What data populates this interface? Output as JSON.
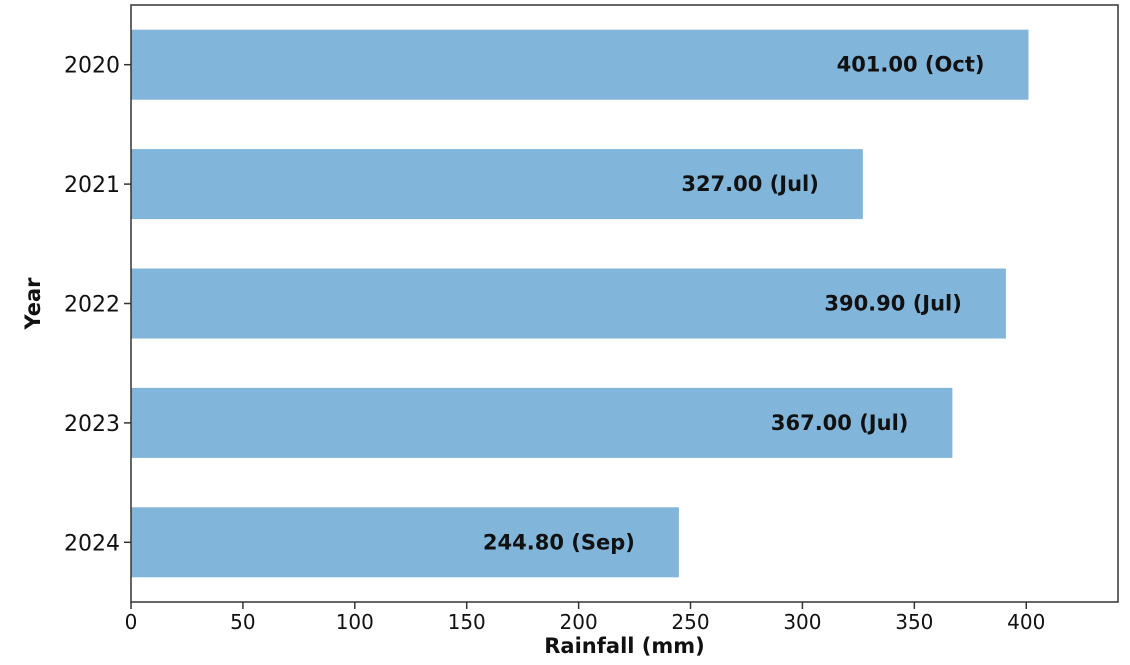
{
  "chart_data": {
    "type": "bar",
    "orientation": "horizontal",
    "categories": [
      "2020",
      "2021",
      "2022",
      "2023",
      "2024"
    ],
    "values": [
      401.0,
      327.0,
      390.9,
      367.0,
      244.8
    ],
    "data_labels": [
      "401.00 (Oct)",
      "327.00 (Jul)",
      "390.90 (Jul)",
      "367.00 (Jul)",
      "244.80 (Sep)"
    ],
    "title": "",
    "xlabel": "Rainfall (mm)",
    "ylabel": "Year",
    "xlim": [
      0,
      441
    ],
    "x_ticks": [
      0,
      50,
      100,
      150,
      200,
      250,
      300,
      350,
      400
    ],
    "grid": false,
    "legend": "none",
    "bar_color": "#82b5da",
    "label_color": "#111111"
  }
}
